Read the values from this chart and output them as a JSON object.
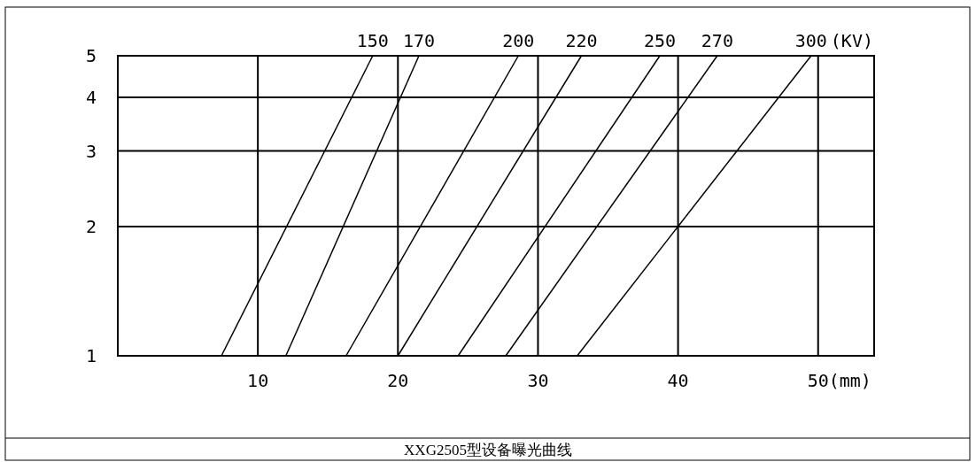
{
  "chart_data": {
    "type": "line",
    "title": "XXG2505型设备曝光曲线",
    "xlabel": "(mm)",
    "annotations": [
      "(KV)"
    ],
    "log": "y",
    "grid": true,
    "marker": "none",
    "line_style": "solid",
    "xlim": [
      0,
      54
    ],
    "ylim": [
      1,
      5
    ],
    "xticks": [
      10,
      20,
      30,
      40,
      50
    ],
    "yticks": [
      1,
      2,
      3,
      4,
      5
    ],
    "series": [
      {
        "name": "150",
        "color": "#000000",
        "x": [
          7.4,
          18.2
        ],
        "values": [
          1,
          5
        ]
      },
      {
        "name": "170",
        "color": "#000000",
        "x": [
          12.0,
          21.5
        ],
        "values": [
          1,
          5
        ]
      },
      {
        "name": "200",
        "color": "#000000",
        "x": [
          16.3,
          28.6
        ],
        "values": [
          1,
          5
        ]
      },
      {
        "name": "220",
        "color": "#000000",
        "x": [
          20.0,
          33.1
        ],
        "values": [
          1,
          5
        ]
      },
      {
        "name": "250",
        "color": "#000000",
        "x": [
          24.3,
          38.7
        ],
        "values": [
          1,
          5
        ]
      },
      {
        "name": "270",
        "color": "#000000",
        "x": [
          27.7,
          42.8
        ],
        "values": [
          1,
          5
        ]
      },
      {
        "name": "300",
        "color": "#000000",
        "x": [
          32.8,
          49.5
        ],
        "values": [
          1,
          5
        ]
      }
    ]
  }
}
